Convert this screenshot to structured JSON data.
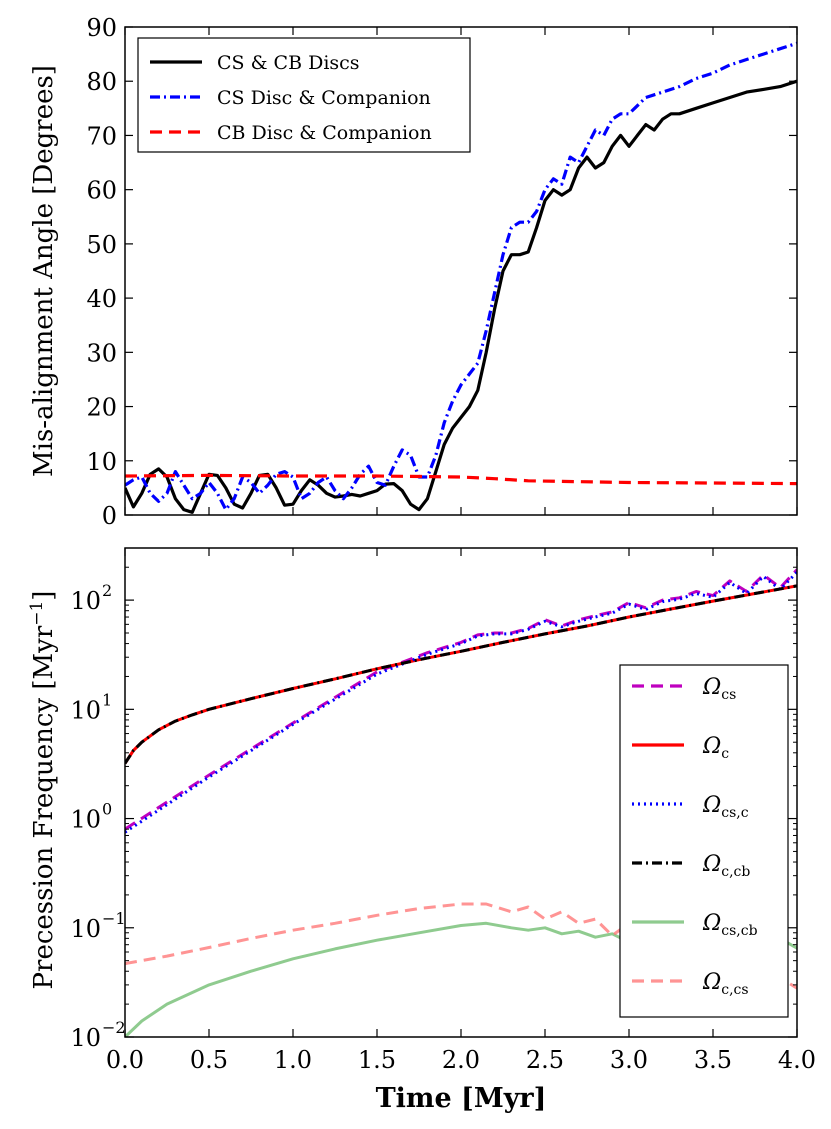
{
  "chart_data": [
    {
      "type": "line",
      "ylabel": "Mis-alignment Angle [Degrees]",
      "xlim": [
        0,
        4
      ],
      "ylim": [
        0,
        90
      ],
      "yscale": "linear",
      "x_ticks": [
        0.0,
        0.5,
        1.0,
        1.5,
        2.0,
        2.5,
        3.0,
        3.5,
        4.0
      ],
      "y_ticks": [
        0,
        10,
        20,
        30,
        40,
        50,
        60,
        70,
        80,
        90
      ],
      "y_tick_labels": [
        "0",
        "10",
        "20",
        "30",
        "40",
        "50",
        "60",
        "70",
        "80",
        "90"
      ],
      "legend_position": "top-left",
      "series": [
        {
          "name": "CS & CB Discs",
          "color": "#000000",
          "style": "solid",
          "x": [
            0.0,
            0.05,
            0.1,
            0.15,
            0.2,
            0.25,
            0.3,
            0.35,
            0.4,
            0.45,
            0.5,
            0.55,
            0.6,
            0.65,
            0.7,
            0.75,
            0.8,
            0.85,
            0.9,
            0.95,
            1.0,
            1.05,
            1.1,
            1.15,
            1.2,
            1.25,
            1.3,
            1.35,
            1.4,
            1.45,
            1.5,
            1.55,
            1.6,
            1.65,
            1.7,
            1.75,
            1.8,
            1.85,
            1.9,
            1.95,
            2.0,
            2.05,
            2.1,
            2.15,
            2.2,
            2.25,
            2.3,
            2.35,
            2.4,
            2.45,
            2.5,
            2.55,
            2.6,
            2.65,
            2.7,
            2.75,
            2.8,
            2.85,
            2.9,
            2.95,
            3.0,
            3.05,
            3.1,
            3.15,
            3.2,
            3.25,
            3.3,
            3.4,
            3.5,
            3.6,
            3.7,
            3.8,
            3.9,
            4.0
          ],
          "y": [
            5,
            1.5,
            4,
            7.5,
            8.5,
            7,
            3,
            1,
            0.5,
            4,
            7.5,
            7.3,
            5,
            2,
            1.3,
            4,
            7.3,
            7.5,
            5,
            1.8,
            2,
            4.5,
            6.5,
            5.5,
            4,
            3.3,
            3.5,
            3.8,
            3.5,
            4,
            4.5,
            5.7,
            5.8,
            4.5,
            2,
            1,
            3,
            8,
            13,
            16,
            18,
            20,
            23,
            30,
            38,
            45,
            48,
            48,
            48.5,
            53,
            58,
            60,
            59,
            60,
            64,
            66,
            64,
            65,
            68,
            70,
            68,
            70,
            72,
            71,
            73,
            74,
            74,
            75,
            76,
            77,
            78,
            78.5,
            79,
            80
          ]
        },
        {
          "name": "CS Disc & Companion",
          "color": "#0000ff",
          "style": "dashdot",
          "x": [
            0.0,
            0.05,
            0.1,
            0.15,
            0.2,
            0.25,
            0.3,
            0.35,
            0.4,
            0.45,
            0.5,
            0.55,
            0.6,
            0.65,
            0.7,
            0.75,
            0.8,
            0.85,
            0.9,
            0.95,
            1.0,
            1.05,
            1.1,
            1.15,
            1.2,
            1.25,
            1.3,
            1.35,
            1.4,
            1.45,
            1.5,
            1.55,
            1.6,
            1.65,
            1.7,
            1.75,
            1.8,
            1.85,
            1.9,
            1.95,
            2.0,
            2.05,
            2.1,
            2.15,
            2.2,
            2.25,
            2.3,
            2.35,
            2.4,
            2.45,
            2.5,
            2.55,
            2.6,
            2.65,
            2.7,
            2.75,
            2.8,
            2.85,
            2.9,
            2.95,
            3.0,
            3.1,
            3.2,
            3.3,
            3.4,
            3.5,
            3.6,
            3.7,
            3.8,
            3.9,
            4.0
          ],
          "y": [
            5.5,
            6.5,
            7,
            4,
            2.5,
            4,
            8,
            5.5,
            3,
            4,
            6,
            4,
            1,
            3,
            7,
            6,
            4,
            5.5,
            7.5,
            8,
            7,
            3,
            4,
            6,
            7,
            4.5,
            3,
            5,
            7.5,
            9,
            6,
            5.5,
            9,
            12,
            11,
            7,
            7,
            11,
            17,
            21,
            24,
            26,
            28,
            34,
            41,
            48,
            53,
            54,
            54,
            56,
            60,
            62,
            61,
            66,
            65,
            68,
            71,
            70,
            73,
            74,
            74,
            77,
            78,
            79,
            80.5,
            81.5,
            83,
            84,
            85,
            86,
            87
          ]
        },
        {
          "name": "CB Disc & Companion",
          "color": "#ff0000",
          "style": "dashed",
          "x": [
            0.0,
            0.5,
            1.0,
            1.5,
            2.0,
            2.2,
            2.4,
            2.6,
            3.0,
            3.5,
            4.0
          ],
          "y": [
            7.2,
            7.3,
            7.2,
            7.2,
            7.0,
            6.7,
            6.3,
            6.2,
            6.0,
            5.9,
            5.8
          ]
        }
      ]
    },
    {
      "type": "line",
      "xlabel": "Time [Myr]",
      "ylabel": "Precession Frequency [Myr",
      "ylabel_sup": "−1",
      "ylabel_close": "]",
      "xlim": [
        0,
        4
      ],
      "ylim": [
        0.01,
        300
      ],
      "yscale": "log",
      "x_ticks": [
        0.0,
        0.5,
        1.0,
        1.5,
        2.0,
        2.5,
        3.0,
        3.5,
        4.0
      ],
      "x_tick_labels": [
        "0.0",
        "0.5",
        "1.0",
        "1.5",
        "2.0",
        "2.5",
        "3.0",
        "3.5",
        "4.0"
      ],
      "y_ticks": [
        0.01,
        0.1,
        1,
        10,
        100
      ],
      "y_tick_mantissa": "10",
      "y_tick_exponents": [
        "−2",
        "−1",
        "0",
        "1",
        "2"
      ],
      "legend_position": "center-right",
      "series": [
        {
          "name": "Ω",
          "name_sub": "cs",
          "color": "#bf00bf",
          "style": "dashed",
          "opacity": 1,
          "x": [
            0.0,
            0.5,
            1.0,
            1.5,
            1.8,
            2.0,
            2.1,
            2.2,
            2.3,
            2.4,
            2.5,
            2.6,
            2.7,
            2.8,
            2.9,
            3.0,
            3.1,
            3.2,
            3.3,
            3.4,
            3.5,
            3.6,
            3.7,
            3.8,
            3.9,
            4.0
          ],
          "y": [
            0.8,
            2.5,
            7.5,
            22,
            33,
            41,
            48,
            50,
            50,
            55,
            66,
            58,
            66,
            72,
            78,
            95,
            85,
            100,
            105,
            120,
            110,
            150,
            120,
            170,
            130,
            190
          ]
        },
        {
          "name": "Ω",
          "name_sub": "c",
          "color": "#ff0000",
          "style": "solid",
          "opacity": 1,
          "x": [
            0.0,
            0.05,
            0.1,
            0.2,
            0.3,
            0.4,
            0.5,
            0.75,
            1.0,
            1.25,
            1.5,
            1.75,
            2.0,
            2.25,
            2.5,
            2.75,
            3.0,
            3.25,
            3.5,
            3.75,
            4.0
          ],
          "y": [
            3.2,
            4.2,
            5.0,
            6.5,
            7.8,
            8.9,
            10,
            12.5,
            15.5,
            19,
            23.5,
            28.5,
            34,
            41,
            49,
            58,
            70,
            83,
            98,
            115,
            135
          ]
        },
        {
          "name": "Ω",
          "name_sub": "cs,c",
          "color": "#0000ff",
          "style": "dotted",
          "opacity": 1,
          "x": [
            0.0,
            0.5,
            1.0,
            1.5,
            1.8,
            2.0,
            2.1,
            2.2,
            2.3,
            2.4,
            2.5,
            2.6,
            2.7,
            2.8,
            2.9,
            3.0,
            3.1,
            3.2,
            3.3,
            3.4,
            3.5,
            3.6,
            3.7,
            3.8,
            3.9,
            4.0
          ],
          "y": [
            0.75,
            2.4,
            7.3,
            21,
            32,
            40,
            47,
            49,
            49,
            54,
            64,
            57,
            64,
            70,
            76,
            92,
            82,
            97,
            102,
            115,
            106,
            145,
            115,
            165,
            125,
            180
          ]
        },
        {
          "name": "Ω",
          "name_sub": "c,cb",
          "color": "#000000",
          "style": "dashdot",
          "opacity": 1,
          "x": [
            0.0,
            0.05,
            0.1,
            0.2,
            0.3,
            0.4,
            0.5,
            0.75,
            1.0,
            1.25,
            1.5,
            1.75,
            2.0,
            2.25,
            2.5,
            2.75,
            3.0,
            3.25,
            3.5,
            3.75,
            4.0
          ],
          "y": [
            3.2,
            4.2,
            5.0,
            6.5,
            7.8,
            8.9,
            10,
            12.5,
            15.5,
            19,
            23.5,
            28.5,
            34,
            41,
            49,
            58,
            70,
            83,
            98,
            115,
            135
          ]
        },
        {
          "name": "Ω",
          "name_sub": "cs,cb",
          "color": "#6aba6a",
          "style": "solid",
          "opacity": 0.75,
          "x": [
            0.0,
            0.1,
            0.25,
            0.5,
            0.75,
            1.0,
            1.25,
            1.5,
            1.75,
            2.0,
            2.15,
            2.3,
            2.4,
            2.5,
            2.6,
            2.7,
            2.8,
            2.9,
            3.0,
            3.1,
            3.2,
            3.3,
            3.4,
            3.5,
            3.6,
            3.7,
            3.8,
            3.9,
            4.0
          ],
          "y": [
            0.01,
            0.014,
            0.02,
            0.03,
            0.04,
            0.052,
            0.064,
            0.077,
            0.09,
            0.105,
            0.11,
            0.1,
            0.095,
            0.1,
            0.088,
            0.093,
            0.082,
            0.088,
            0.074,
            0.085,
            0.07,
            0.082,
            0.068,
            0.08,
            0.066,
            0.08,
            0.064,
            0.08,
            0.065
          ]
        },
        {
          "name": "Ω",
          "name_sub": "c,cs",
          "color": "#ff7070",
          "style": "dashed",
          "opacity": 0.75,
          "x": [
            0.0,
            0.25,
            0.5,
            0.75,
            1.0,
            1.25,
            1.5,
            1.75,
            2.0,
            2.15,
            2.3,
            2.4,
            2.5,
            2.6,
            2.7,
            2.8,
            2.9,
            3.0,
            3.1,
            3.2,
            3.3,
            3.4,
            3.5,
            3.6,
            3.7,
            3.8,
            3.9,
            4.0
          ],
          "y": [
            0.047,
            0.055,
            0.066,
            0.08,
            0.095,
            0.11,
            0.13,
            0.15,
            0.165,
            0.165,
            0.14,
            0.155,
            0.12,
            0.14,
            0.11,
            0.12,
            0.085,
            0.11,
            0.075,
            0.1,
            0.065,
            0.095,
            0.058,
            0.085,
            0.045,
            0.075,
            0.035,
            0.028
          ]
        }
      ]
    }
  ]
}
